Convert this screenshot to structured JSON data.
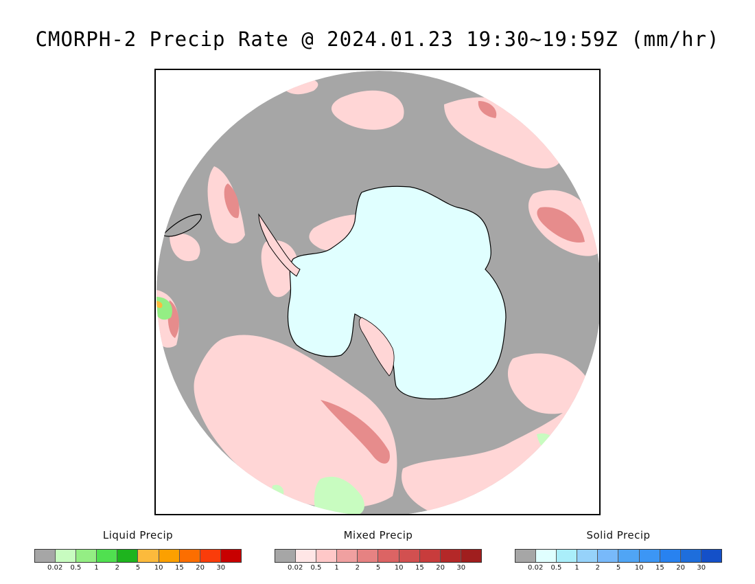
{
  "title": "CMORPH-2 Precip Rate @ 2024.01.23 19:30~19:59Z (mm/hr)",
  "map": {
    "projection": "south-polar-stereographic",
    "no_precip_color": "#a6a6a6",
    "continent_color": "#e0ffff",
    "outside_color": "#ffffff",
    "coastline_color": "#000000"
  },
  "legends": [
    {
      "title": "Liquid Precip",
      "ticks": [
        "0.02",
        "0.5",
        "1",
        "2",
        "5",
        "10",
        "15",
        "20",
        "30"
      ],
      "colors": [
        "#a6a6a6",
        "#c8fcc0",
        "#94ee84",
        "#50e050",
        "#1eb41e",
        "#fcba3c",
        "#fca000",
        "#fc6e00",
        "#fa3c0a",
        "#c80000"
      ]
    },
    {
      "title": "Mixed Precip",
      "ticks": [
        "0.02",
        "0.5",
        "1",
        "2",
        "5",
        "10",
        "15",
        "20",
        "30"
      ],
      "colors": [
        "#a6a6a6",
        "#ffe6e6",
        "#ffc8c8",
        "#f0a0a0",
        "#e68282",
        "#dc6464",
        "#d25050",
        "#c83c3c",
        "#b42828",
        "#a01e1e"
      ]
    },
    {
      "title": "Solid Precip",
      "ticks": [
        "0.02",
        "0.5",
        "1",
        "2",
        "5",
        "10",
        "15",
        "20",
        "30"
      ],
      "colors": [
        "#a6a6a6",
        "#e0ffff",
        "#aaeefa",
        "#96d2fa",
        "#78b9fa",
        "#50a5f5",
        "#3c96f5",
        "#2882f0",
        "#1e6edc",
        "#1450c8"
      ]
    }
  ]
}
